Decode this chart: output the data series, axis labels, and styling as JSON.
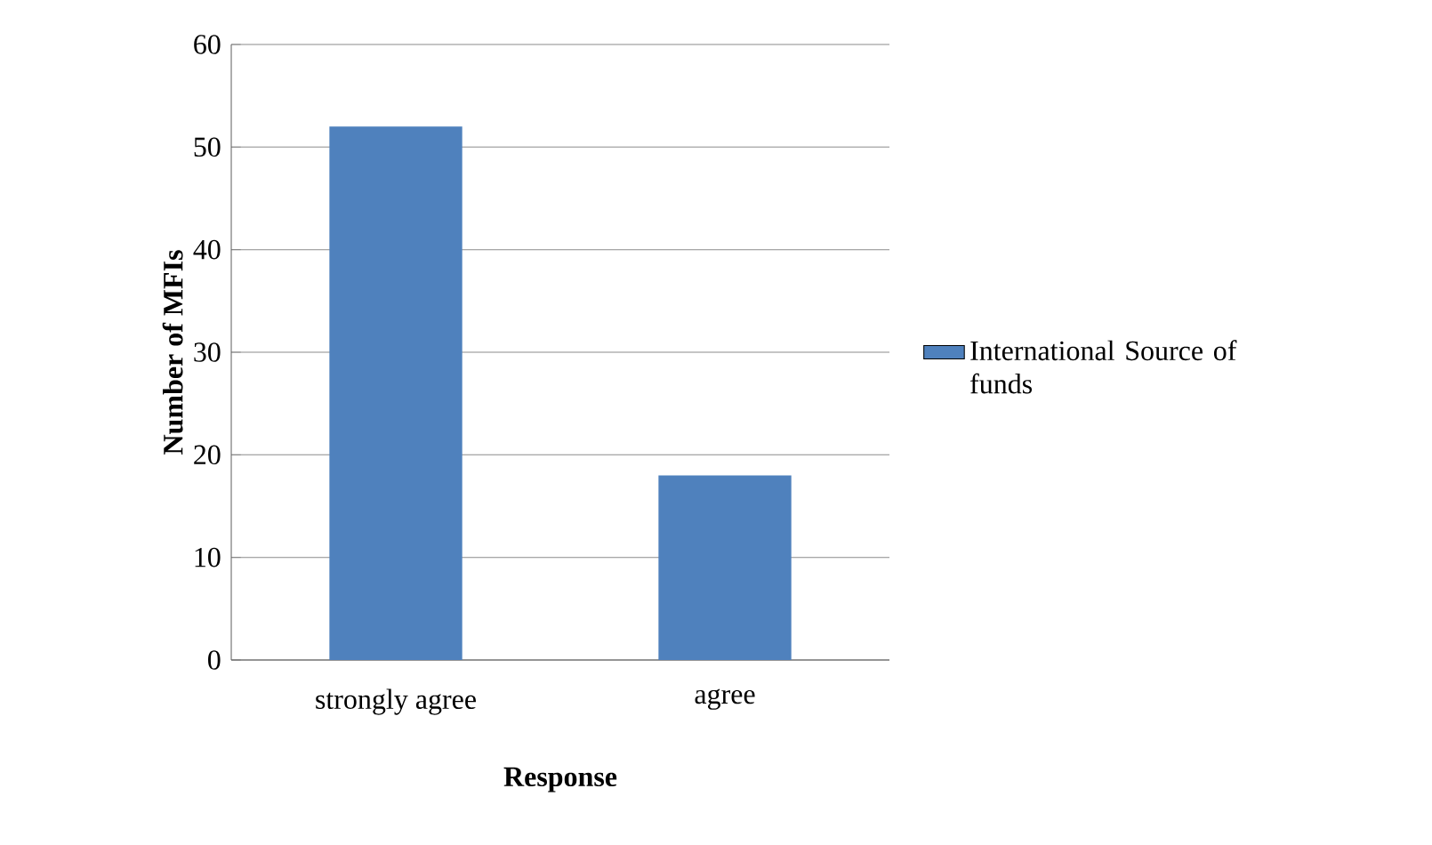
{
  "chart_data": {
    "type": "bar",
    "xlabel": "Response",
    "ylabel": "Number of MFIs",
    "categories": [
      "strongly agree",
      "agree"
    ],
    "series": [
      {
        "name": "International Source of funds",
        "color": "#4f81bd",
        "values": [
          52,
          18
        ]
      }
    ],
    "ylim": [
      0,
      60
    ],
    "yticks": [
      0,
      10,
      20,
      30,
      40,
      50,
      60
    ],
    "grid": "y",
    "legend": "right"
  }
}
